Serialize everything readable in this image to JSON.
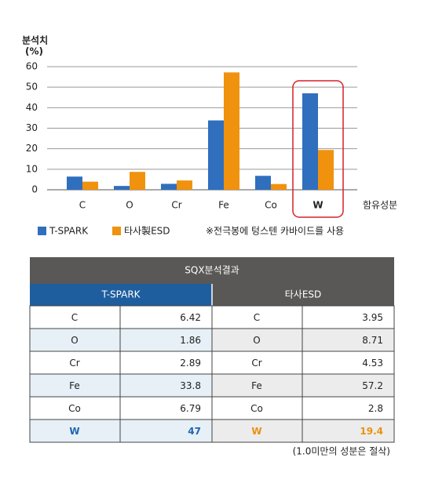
{
  "chart_data": {
    "type": "bar",
    "y_label": [
      "분석치",
      "(%)"
    ],
    "x_label": "함유성분",
    "categories": [
      "C",
      "O",
      "Cr",
      "Fe",
      "Co",
      "W"
    ],
    "series": [
      {
        "name": "T-SPARK",
        "color": "#2f6fbe",
        "values": [
          6.42,
          1.86,
          2.89,
          33.8,
          6.79,
          47
        ]
      },
      {
        "name": "타사製ESD",
        "color": "#f0920e",
        "values": [
          3.95,
          8.71,
          4.53,
          57.2,
          2.8,
          19.4
        ]
      }
    ],
    "ylim": [
      0,
      60
    ],
    "yticks": [
      0,
      10,
      20,
      30,
      40,
      50,
      60
    ],
    "grid": true,
    "highlight": 5,
    "note": "※전극봉에 텅스텐 카바이드를 사용"
  },
  "table": {
    "title": "SQX분석결과",
    "headers": [
      "T-SPARK",
      "타사ESD"
    ],
    "rows": [
      [
        "C",
        "6.42",
        "C",
        "3.95"
      ],
      [
        "O",
        "1.86",
        "O",
        "8.71"
      ],
      [
        "Cr",
        "2.89",
        "Cr",
        "4.53"
      ],
      [
        "Fe",
        "33.8",
        "Fe",
        "57.2"
      ],
      [
        "Co",
        "6.79",
        "Co",
        "2.8"
      ],
      [
        "W",
        "47",
        "W",
        "19.4"
      ]
    ],
    "note": "(1.0미만의 성분은 절삭)"
  }
}
